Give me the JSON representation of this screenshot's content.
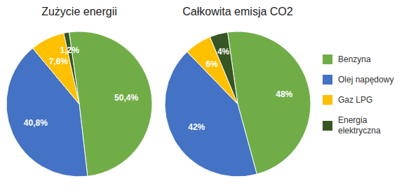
{
  "chart_data": [
    {
      "type": "pie",
      "title": "Zużycie energii",
      "categories": [
        "Benzyna",
        "Olej napędowy",
        "Gaz LPG",
        "Energia\nelektryczna"
      ],
      "values": [
        50.4,
        40.8,
        7.6,
        1.2
      ],
      "value_labels": [
        "50,4%",
        "40,8%",
        "7,6%",
        "1,2%"
      ],
      "colors": [
        "#70AD47",
        "#4472C4",
        "#FFC000",
        "#375623"
      ],
      "data_labels": true
    },
    {
      "type": "pie",
      "title": "Całkowita emisja CO2",
      "categories": [
        "Benzyna",
        "Olej napędowy",
        "Gaz LPG",
        "Energia\nelektryczna"
      ],
      "values": [
        48,
        42,
        6,
        4
      ],
      "value_labels": [
        "48%",
        "42%",
        "6%",
        "4%"
      ],
      "colors": [
        "#70AD47",
        "#4472C4",
        "#FFC000",
        "#375623"
      ],
      "data_labels": true,
      "legend": "right"
    }
  ]
}
